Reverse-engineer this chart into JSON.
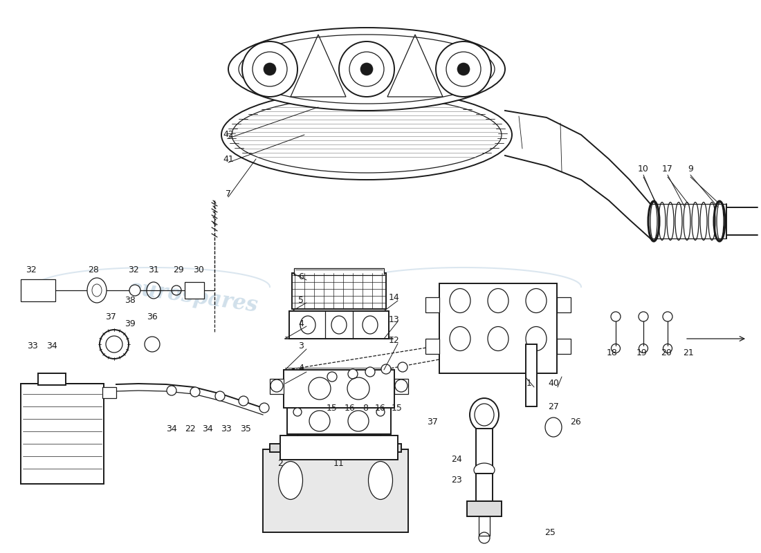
{
  "bg_color": "#ffffff",
  "lc": "#1a1a1a",
  "wc": "#b8cfe0",
  "figsize": [
    11.0,
    8.0
  ],
  "dpi": 100
}
